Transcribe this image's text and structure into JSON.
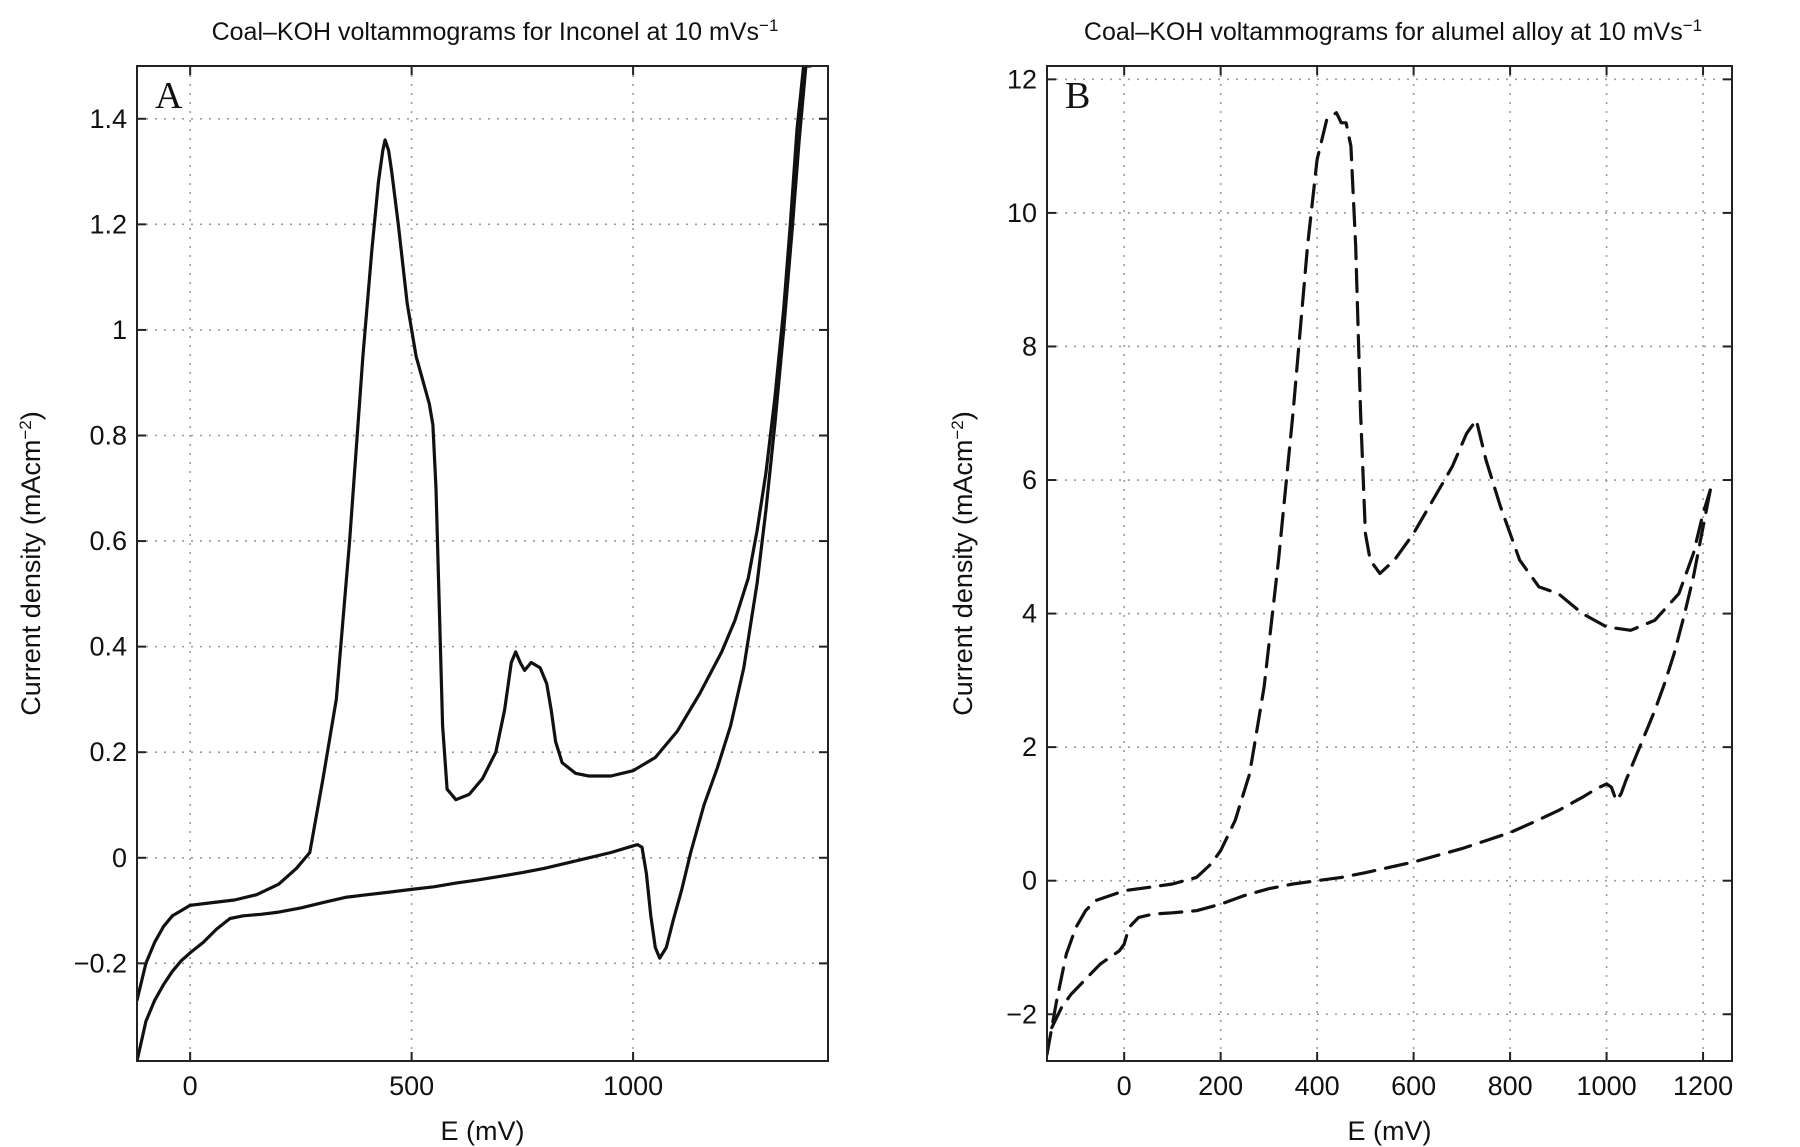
{
  "chart_data": [
    {
      "type": "line",
      "panel_label": "A",
      "title": "Coal–KOH voltammograms for Inconel at 10 mVs",
      "title_superscript": "−1",
      "xlabel": "E (mV)",
      "ylabel": "Current density (mAcm",
      "ylabel_superscript": "−2",
      "ylabel_close": ")",
      "xlim": [
        -120,
        1440
      ],
      "ylim": [
        -0.385,
        1.5
      ],
      "xticks": [
        0,
        500,
        1000
      ],
      "xtick_labels": [
        "0",
        "500",
        "1000"
      ],
      "yticks": [
        -0.2,
        0,
        0.2,
        0.4,
        0.6,
        0.8,
        1,
        1.2,
        1.4
      ],
      "ytick_labels": [
        "−0.2",
        "0",
        "0.2",
        "0.4",
        "0.6",
        "0.8",
        "1",
        "1.2",
        "1.4"
      ],
      "grid": true,
      "line_style": "solid",
      "series": [
        {
          "x": [
            -120,
            -100,
            -80,
            -60,
            -40,
            -20,
            0,
            50,
            100,
            150,
            200,
            240,
            270,
            300,
            330,
            360,
            390,
            410,
            425,
            435,
            440,
            448,
            455,
            470,
            490,
            510,
            530,
            540,
            548,
            555,
            560,
            565,
            570,
            580,
            600,
            630,
            660,
            690,
            710,
            725,
            735,
            745,
            755,
            770,
            790,
            805,
            815,
            825,
            840,
            870,
            900,
            950,
            1000,
            1050,
            1100,
            1150,
            1200,
            1230,
            1260,
            1280,
            1300,
            1320,
            1340,
            1355,
            1370,
            1385,
            1400
          ],
          "y": [
            -0.27,
            -0.2,
            -0.16,
            -0.13,
            -0.11,
            -0.1,
            -0.09,
            -0.085,
            -0.08,
            -0.07,
            -0.05,
            -0.02,
            0.01,
            0.15,
            0.3,
            0.6,
            0.95,
            1.15,
            1.28,
            1.34,
            1.36,
            1.34,
            1.3,
            1.2,
            1.05,
            0.95,
            0.89,
            0.86,
            0.82,
            0.7,
            0.55,
            0.4,
            0.25,
            0.13,
            0.11,
            0.12,
            0.15,
            0.2,
            0.28,
            0.37,
            0.39,
            0.37,
            0.355,
            0.37,
            0.36,
            0.33,
            0.28,
            0.22,
            0.18,
            0.16,
            0.155,
            0.155,
            0.165,
            0.19,
            0.24,
            0.31,
            0.39,
            0.45,
            0.53,
            0.62,
            0.73,
            0.87,
            1.04,
            1.2,
            1.38,
            1.5,
            1.5
          ]
        },
        {
          "x": [
            -120,
            -100,
            -80,
            -60,
            -40,
            -20,
            0,
            30,
            60,
            90,
            120,
            160,
            200,
            250,
            300,
            350,
            400,
            450,
            500,
            550,
            600,
            650,
            700,
            750,
            800,
            850,
            900,
            950,
            990,
            1010,
            1020,
            1030,
            1040,
            1050,
            1060,
            1075,
            1090,
            1110,
            1130,
            1160,
            1190,
            1220,
            1250,
            1280,
            1300,
            1320,
            1340,
            1360,
            1375,
            1390
          ],
          "y": [
            -0.385,
            -0.31,
            -0.27,
            -0.24,
            -0.215,
            -0.195,
            -0.18,
            -0.16,
            -0.135,
            -0.115,
            -0.11,
            -0.107,
            -0.103,
            -0.095,
            -0.085,
            -0.075,
            -0.07,
            -0.065,
            -0.06,
            -0.055,
            -0.048,
            -0.042,
            -0.035,
            -0.028,
            -0.02,
            -0.01,
            0,
            0.01,
            0.02,
            0.025,
            0.02,
            -0.03,
            -0.11,
            -0.17,
            -0.19,
            -0.17,
            -0.12,
            -0.06,
            0.01,
            0.1,
            0.17,
            0.25,
            0.36,
            0.52,
            0.66,
            0.82,
            1.0,
            1.2,
            1.36,
            1.5
          ]
        }
      ]
    },
    {
      "type": "line",
      "panel_label": "B",
      "title": "Coal–KOH voltammograms for alumel alloy at 10 mVs",
      "title_superscript": "−1",
      "xlabel": "E (mV)",
      "ylabel": "Current density (mAcm",
      "ylabel_superscript": "−2",
      "ylabel_close": ")",
      "xlim": [
        -160,
        1260
      ],
      "ylim": [
        -2.7,
        12.2
      ],
      "xticks": [
        0,
        200,
        400,
        600,
        800,
        1000,
        1200
      ],
      "xtick_labels": [
        "0",
        "200",
        "400",
        "600",
        "800",
        "1000",
        "1200"
      ],
      "yticks": [
        -2,
        0,
        2,
        4,
        6,
        8,
        10,
        12
      ],
      "ytick_labels": [
        "−2",
        "0",
        "2",
        "4",
        "6",
        "8",
        "10",
        "12"
      ],
      "grid": true,
      "line_style": "dashed",
      "series": [
        {
          "x": [
            -160,
            -140,
            -120,
            -100,
            -80,
            -60,
            -40,
            -20,
            0,
            50,
            100,
            150,
            180,
            200,
            230,
            260,
            290,
            320,
            350,
            380,
            400,
            420,
            440,
            450,
            460,
            470,
            480,
            490,
            500,
            510,
            530,
            560,
            600,
            640,
            680,
            710,
            730,
            750,
            780,
            820,
            860,
            900,
            950,
            1000,
            1050,
            1100,
            1150,
            1180,
            1200,
            1215
          ],
          "y": [
            -2.6,
            -1.8,
            -1.1,
            -0.7,
            -0.45,
            -0.3,
            -0.25,
            -0.2,
            -0.15,
            -0.1,
            -0.05,
            0.05,
            0.25,
            0.45,
            0.9,
            1.6,
            2.9,
            4.8,
            7.0,
            9.5,
            10.8,
            11.4,
            11.5,
            11.35,
            11.35,
            11.0,
            9.5,
            7.0,
            5.2,
            4.8,
            4.6,
            4.8,
            5.2,
            5.7,
            6.2,
            6.7,
            6.9,
            6.3,
            5.6,
            4.8,
            4.4,
            4.3,
            4.0,
            3.8,
            3.75,
            3.9,
            4.3,
            4.9,
            5.5,
            5.85
          ]
        },
        {
          "x": [
            -150,
            -130,
            -110,
            -90,
            -70,
            -50,
            -30,
            -10,
            0,
            10,
            30,
            60,
            100,
            150,
            200,
            250,
            300,
            350,
            400,
            450,
            500,
            550,
            600,
            650,
            700,
            750,
            800,
            850,
            900,
            950,
            980,
            1000,
            1010,
            1020,
            1030,
            1040,
            1060,
            1080,
            1100,
            1120,
            1140,
            1160,
            1180,
            1200,
            1215
          ],
          "y": [
            -2.2,
            -1.9,
            -1.7,
            -1.55,
            -1.4,
            -1.25,
            -1.15,
            -1.05,
            -0.95,
            -0.7,
            -0.55,
            -0.5,
            -0.48,
            -0.45,
            -0.35,
            -0.22,
            -0.12,
            -0.05,
            0.0,
            0.05,
            0.12,
            0.2,
            0.28,
            0.38,
            0.48,
            0.6,
            0.72,
            0.88,
            1.05,
            1.25,
            1.38,
            1.45,
            1.4,
            1.2,
            1.3,
            1.5,
            1.85,
            2.2,
            2.55,
            2.95,
            3.4,
            3.95,
            4.55,
            5.3,
            5.85
          ]
        }
      ]
    }
  ]
}
